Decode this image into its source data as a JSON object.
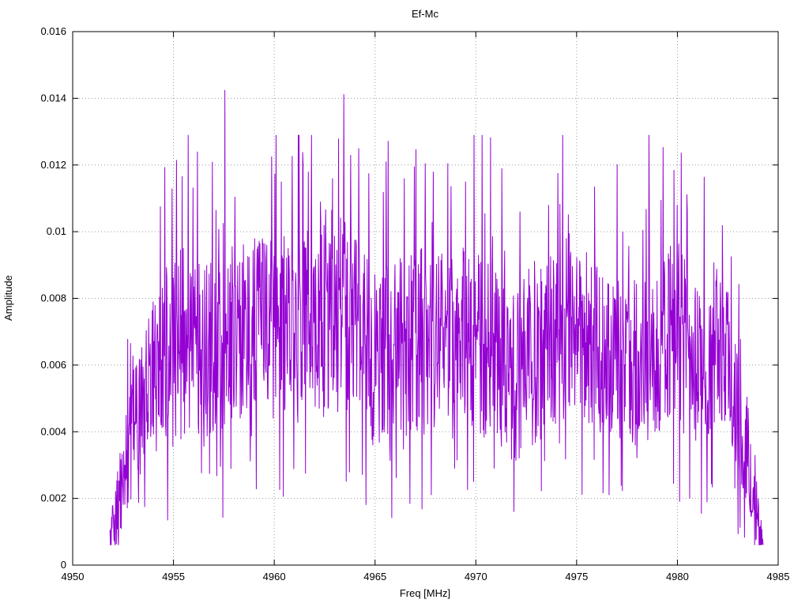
{
  "chart_data": {
    "type": "line",
    "title": "Ef-Mc",
    "xlabel": "Freq [MHz]",
    "ylabel": "Amplitude",
    "xlim": [
      4950,
      4985
    ],
    "ylim": [
      0,
      0.016
    ],
    "xticks": [
      4950,
      4955,
      4960,
      4965,
      4970,
      4975,
      4980,
      4985
    ],
    "xtick_labels": [
      "4950",
      "4955",
      "4960",
      "4965",
      "4970",
      "4975",
      "4980",
      "4985"
    ],
    "yticks": [
      0,
      0.002,
      0.004,
      0.006,
      0.008,
      0.01,
      0.012,
      0.014,
      0.016
    ],
    "ytick_labels": [
      "0",
      "0.002",
      "0.004",
      "0.006",
      "0.008",
      "0.01",
      "0.012",
      "0.014",
      "0.016"
    ],
    "grid": "dotted",
    "grid_color": "#9a9a9a",
    "legend_position": "none",
    "series": [
      {
        "name": "Ef-Mc",
        "color": "#9400d3",
        "x_start": 4951.85,
        "x_end": 4984.25,
        "step": 0.02,
        "seed": 20240613,
        "envelope": [
          [
            4951.85,
            0.0008,
            0.0005
          ],
          [
            4952.2,
            0.0018,
            0.0012
          ],
          [
            4952.6,
            0.003,
            0.0016
          ],
          [
            4953.0,
            0.0042,
            0.002
          ],
          [
            4953.6,
            0.0052,
            0.0022
          ],
          [
            4954.2,
            0.0058,
            0.0024
          ],
          [
            4955.0,
            0.0066,
            0.0028
          ],
          [
            4956.0,
            0.0064,
            0.0028
          ],
          [
            4957.0,
            0.0066,
            0.0028
          ],
          [
            4958.0,
            0.0068,
            0.0028
          ],
          [
            4959.0,
            0.0072,
            0.0026
          ],
          [
            4960.0,
            0.007,
            0.0028
          ],
          [
            4961.0,
            0.0072,
            0.0028
          ],
          [
            4962.0,
            0.0074,
            0.0028
          ],
          [
            4963.0,
            0.0076,
            0.003
          ],
          [
            4964.0,
            0.007,
            0.003
          ],
          [
            4965.0,
            0.0062,
            0.0028
          ],
          [
            4966.0,
            0.0066,
            0.0028
          ],
          [
            4967.0,
            0.0068,
            0.0028
          ],
          [
            4968.0,
            0.0066,
            0.0028
          ],
          [
            4969.0,
            0.007,
            0.0026
          ],
          [
            4970.0,
            0.0066,
            0.0028
          ],
          [
            4971.0,
            0.0064,
            0.0028
          ],
          [
            4972.0,
            0.006,
            0.003
          ],
          [
            4973.0,
            0.0064,
            0.0028
          ],
          [
            4974.0,
            0.0068,
            0.0026
          ],
          [
            4975.0,
            0.007,
            0.0026
          ],
          [
            4976.0,
            0.0066,
            0.0026
          ],
          [
            4977.0,
            0.0062,
            0.0026
          ],
          [
            4978.0,
            0.006,
            0.0026
          ],
          [
            4979.0,
            0.0068,
            0.0028
          ],
          [
            4980.0,
            0.007,
            0.0028
          ],
          [
            4981.0,
            0.0058,
            0.0026
          ],
          [
            4982.0,
            0.0068,
            0.0022
          ],
          [
            4982.6,
            0.006,
            0.0022
          ],
          [
            4983.0,
            0.0046,
            0.002
          ],
          [
            4983.5,
            0.0034,
            0.0016
          ],
          [
            4984.0,
            0.0014,
            0.001
          ],
          [
            4984.25,
            0.0006,
            0.0004
          ]
        ],
        "peaks": [
          [
            4955.15,
            0.01215
          ],
          [
            4956.2,
            0.0124
          ],
          [
            4957.1,
            0.01065
          ],
          [
            4957.55,
            0.01425
          ],
          [
            4958.05,
            0.01105
          ],
          [
            4959.3,
            0.00965
          ],
          [
            4960.35,
            0.0115
          ],
          [
            4960.9,
            0.01227
          ],
          [
            4961.7,
            0.0118
          ],
          [
            4962.3,
            0.0109
          ],
          [
            4962.9,
            0.0116
          ],
          [
            4963.2,
            0.01279
          ],
          [
            4963.45,
            0.01412
          ],
          [
            4963.8,
            0.0123
          ],
          [
            4964.2,
            0.0125
          ],
          [
            4964.7,
            0.01175
          ],
          [
            4965.55,
            0.0121
          ],
          [
            4966.45,
            0.0116
          ],
          [
            4967.5,
            0.01205
          ],
          [
            4967.9,
            0.0118
          ],
          [
            4968.6,
            0.01205
          ],
          [
            4969.5,
            0.0115
          ],
          [
            4971.3,
            0.0119
          ],
          [
            4972.2,
            0.0106
          ],
          [
            4973.6,
            0.0108
          ],
          [
            4974.5,
            0.0098
          ],
          [
            4975.9,
            0.01135
          ],
          [
            4977.3,
            0.01
          ],
          [
            4978.3,
            0.01005
          ],
          [
            4979.2,
            0.01095
          ],
          [
            4980.0,
            0.0108
          ],
          [
            4980.5,
            0.0106
          ]
        ],
        "dips": [
          [
            4960.45,
            0.00205
          ],
          [
            4967.8,
            0.0021
          ],
          [
            4971.9,
            0.0016
          ],
          [
            4976.6,
            0.0021
          ],
          [
            4980.6,
            0.002
          ]
        ]
      }
    ]
  }
}
